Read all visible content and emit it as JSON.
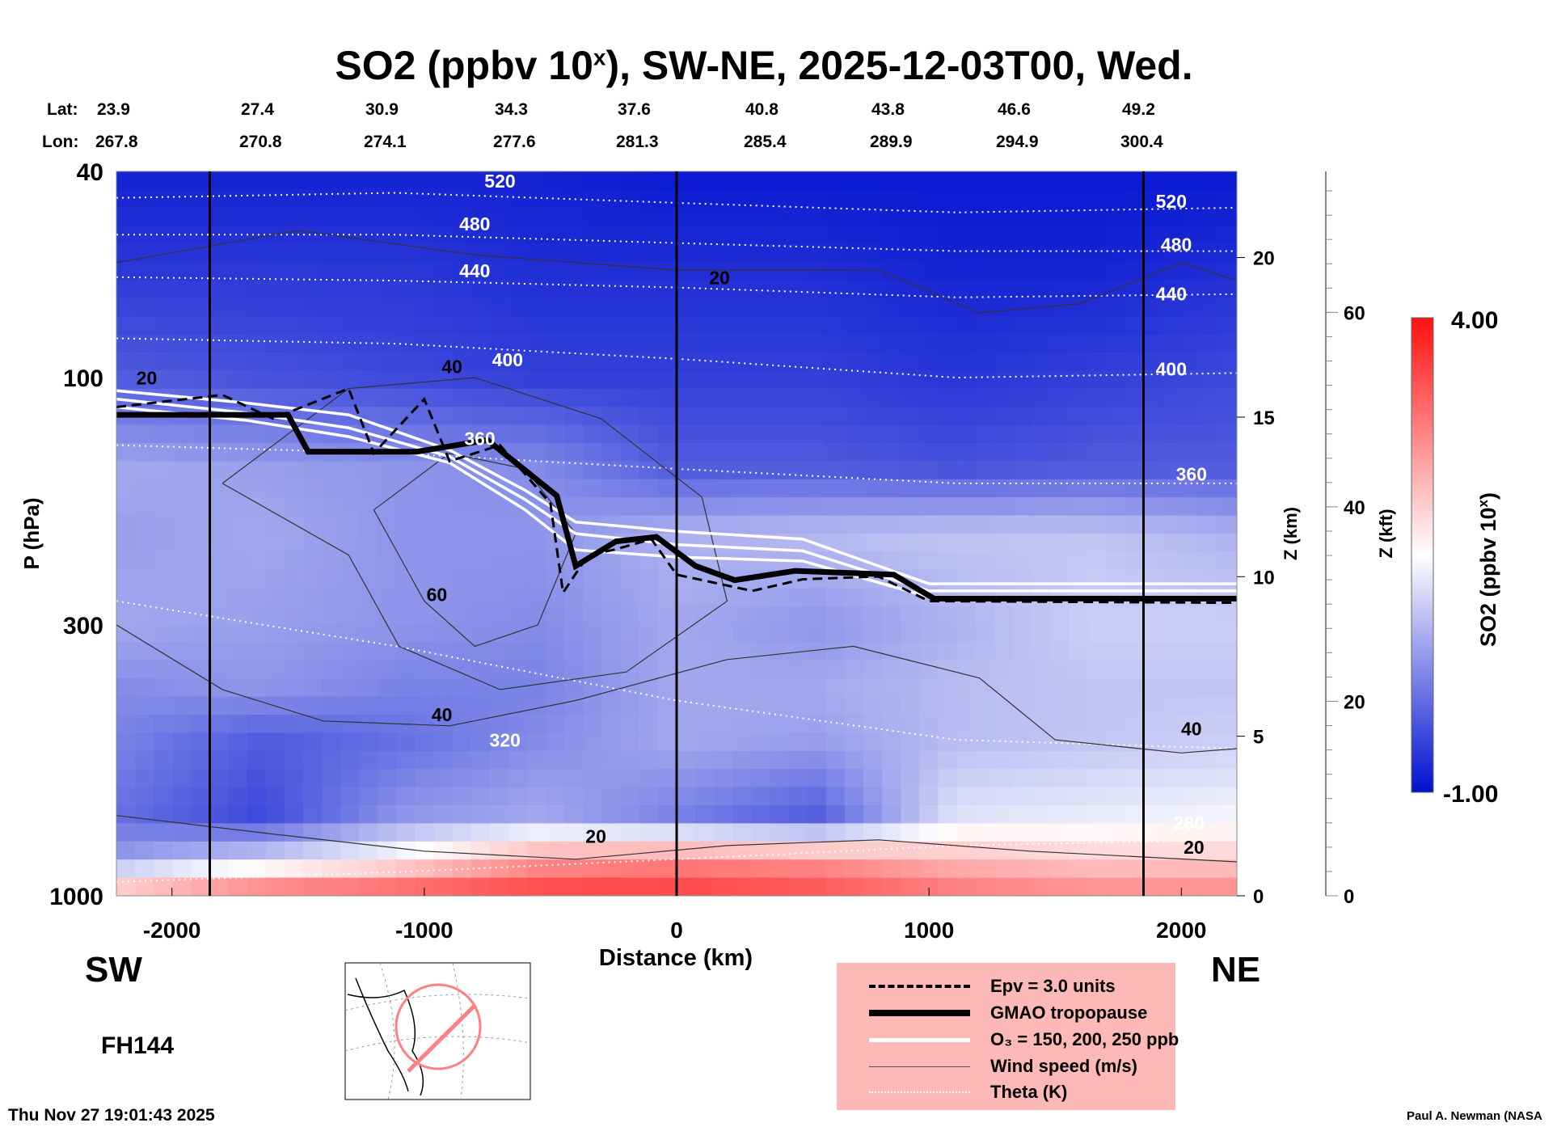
{
  "title": {
    "main": "SO2 (ppbv 10",
    "sup": "x",
    "rest": "), SW-NE, 2025-12-03T00, Wed."
  },
  "lat_label": "Lat:",
  "lon_label": "Lon:",
  "lats": [
    "23.9",
    "27.4",
    "30.9",
    "34.3",
    "37.6",
    "40.8",
    "43.8",
    "46.6",
    "49.2"
  ],
  "lons": [
    "267.8",
    "270.8",
    "274.1",
    "277.6",
    "281.3",
    "285.4",
    "289.9",
    "294.9",
    "300.4"
  ],
  "sw_label": "SW",
  "ne_label": "NE",
  "forecast_hour": "FH144",
  "timestamp": "Thu Nov 27 19:01:43 2025",
  "credit": "Paul A. Newman (NASA",
  "legend": {
    "epv": "Epv = 3.0 units",
    "tropopause": "GMAO tropopause",
    "o3": "O₃ = 150, 200, 250 ppb",
    "wind": "Wind speed (m/s)",
    "theta": "Theta (K)"
  },
  "colors": {
    "legend_bg": "#fdb8b8",
    "low": "#0010d0",
    "mid": "#ffffff",
    "high": "#ff1010"
  },
  "chart_data": {
    "type": "heatmap",
    "title": "SO2 (ppbv 10^x), SW-NE, 2025-12-03T00, Wed.",
    "xlabel": "Distance (km)",
    "ylabel": "P (hPa)",
    "y2label": "Z (km)",
    "y3label": "Z (kft)",
    "xlim": [
      -2220,
      2220
    ],
    "ylim": [
      1000,
      40
    ],
    "x_ticks": [
      "-2000",
      "-1000",
      "0",
      "1000",
      "2000"
    ],
    "x_tick_values": [
      -2000,
      -1000,
      0,
      1000,
      2000
    ],
    "y_ticks": [
      "40",
      "100",
      "300",
      "1000"
    ],
    "y_tick_values": [
      40,
      100,
      300,
      1000
    ],
    "zkm_ticks": [
      "0",
      "5",
      "10",
      "15",
      "20"
    ],
    "zkm_tick_values": [
      0,
      5,
      10,
      15,
      20
    ],
    "zkft_ticks": [
      "0",
      "20",
      "40",
      "60"
    ],
    "zkft_tick_values": [
      0,
      20,
      40,
      60
    ],
    "section_lines_km": [
      -1850,
      0,
      1850
    ],
    "colorbar": {
      "label": "SO2 (ppbv 10",
      "label_sup": "x",
      "label_end": ")",
      "min_label": "-1.00",
      "max_label": "4.00",
      "range": [
        -1,
        4
      ]
    },
    "grid_x": [
      -2200,
      -1650,
      -1100,
      -550,
      0,
      550,
      1100,
      1650,
      2200
    ],
    "grid_p": [
      40,
      60,
      100,
      150,
      200,
      300,
      400,
      500,
      700,
      850,
      1000
    ],
    "values": [
      [
        -0.8,
        -0.8,
        -0.8,
        -0.8,
        -0.9,
        -0.9,
        -0.9,
        -0.9,
        -0.9
      ],
      [
        -0.6,
        -0.6,
        -0.6,
        -0.7,
        -0.7,
        -0.7,
        -0.8,
        -0.8,
        -0.7
      ],
      [
        -0.2,
        -0.3,
        -0.4,
        -0.5,
        -0.5,
        -0.5,
        -0.6,
        -0.5,
        -0.4
      ],
      [
        0.6,
        0.5,
        0.4,
        0.3,
        -0.2,
        -0.2,
        -0.3,
        -0.2,
        -0.2
      ],
      [
        0.5,
        0.6,
        0.4,
        0.4,
        0.7,
        0.8,
        0.9,
        0.9,
        0.7
      ],
      [
        0.6,
        0.5,
        0.4,
        0.3,
        0.6,
        0.4,
        0.7,
        1.0,
        1.0
      ],
      [
        0.3,
        0.4,
        0.2,
        0.2,
        0.6,
        0.6,
        0.8,
        0.9,
        0.9
      ],
      [
        0.2,
        -0.2,
        0.0,
        0.3,
        0.6,
        0.5,
        0.8,
        0.9,
        1.0
      ],
      [
        0.0,
        -0.4,
        0.4,
        0.6,
        0.2,
        -0.2,
        1.2,
        1.3,
        1.4
      ],
      [
        0.5,
        1.0,
        1.6,
        2.5,
        2.7,
        2.6,
        2.2,
        2.0,
        2.0
      ],
      [
        2.5,
        3.2,
        3.4,
        3.6,
        3.6,
        3.4,
        3.0,
        2.8,
        2.8
      ]
    ],
    "tropopause": [
      [
        -2220,
        118
      ],
      [
        -1540,
        118
      ],
      [
        -1460,
        139
      ],
      [
        -1030,
        139
      ],
      [
        -750,
        132
      ],
      [
        -475,
        169
      ],
      [
        -400,
        231
      ],
      [
        -240,
        207
      ],
      [
        -80,
        203
      ],
      [
        75,
        231
      ],
      [
        230,
        246
      ],
      [
        470,
        236
      ],
      [
        860,
        240
      ],
      [
        1020,
        267
      ],
      [
        2220,
        267
      ]
    ],
    "o3_lines": [
      [
        [
          -2220,
          106
        ],
        [
          -1700,
          112
        ],
        [
          -1300,
          118
        ],
        [
          -900,
          138
        ],
        [
          -600,
          165
        ],
        [
          -400,
          190
        ],
        [
          0,
          198
        ],
        [
          500,
          205
        ],
        [
          1000,
          250
        ],
        [
          2220,
          250
        ]
      ],
      [
        [
          -2220,
          110
        ],
        [
          -1700,
          117
        ],
        [
          -1300,
          125
        ],
        [
          -900,
          142
        ],
        [
          -600,
          172
        ],
        [
          -400,
          200
        ],
        [
          0,
          210
        ],
        [
          500,
          216
        ],
        [
          1000,
          258
        ],
        [
          2220,
          258
        ]
      ],
      [
        [
          -2220,
          114
        ],
        [
          -1700,
          121
        ],
        [
          -1300,
          130
        ],
        [
          -900,
          146
        ],
        [
          -600,
          180
        ],
        [
          -400,
          215
        ],
        [
          0,
          222
        ],
        [
          500,
          226
        ],
        [
          1000,
          265
        ],
        [
          2220,
          265
        ]
      ]
    ],
    "epv_line": [
      [
        -2220,
        114
      ],
      [
        -1800,
        108
      ],
      [
        -1600,
        120
      ],
      [
        -1300,
        105
      ],
      [
        -1200,
        140
      ],
      [
        -1000,
        110
      ],
      [
        -900,
        145
      ],
      [
        -700,
        135
      ],
      [
        -500,
        175
      ],
      [
        -450,
        260
      ],
      [
        -350,
        220
      ],
      [
        -250,
        215
      ],
      [
        -100,
        205
      ],
      [
        0,
        240
      ],
      [
        300,
        258
      ],
      [
        500,
        245
      ],
      [
        800,
        242
      ],
      [
        1000,
        270
      ],
      [
        2220,
        272
      ]
    ],
    "theta_lines": [
      {
        "value": "520",
        "p": [
          45,
          44,
          46,
          48,
          47
        ]
      },
      {
        "value": "480",
        "p": [
          53,
          53,
          55,
          57,
          57
        ]
      },
      {
        "value": "440",
        "p": [
          64,
          65,
          67,
          70,
          69
        ]
      },
      {
        "value": "400",
        "p": [
          84,
          86,
          92,
          100,
          98
        ]
      },
      {
        "value": "360",
        "p": [
          135,
          140,
          150,
          160,
          160
        ]
      },
      {
        "value": "320",
        "p": [
          270,
          330,
          420,
          500,
          520
        ]
      },
      {
        "value": "280",
        "p": [
          940,
          900,
          850,
          800,
          780
        ]
      }
    ],
    "wind_contours": [
      {
        "label": "20",
        "pts": [
          [
            -2220,
            60
          ],
          [
            -1500,
            52
          ],
          [
            -800,
            58
          ],
          [
            0,
            62
          ],
          [
            800,
            62
          ],
          [
            1200,
            75
          ],
          [
            1600,
            72
          ],
          [
            2000,
            60
          ],
          [
            2220,
            65
          ]
        ]
      },
      {
        "label": "40",
        "pts": [
          [
            -1800,
            160
          ],
          [
            -1300,
            105
          ],
          [
            -800,
            100
          ],
          [
            -300,
            120
          ],
          [
            100,
            170
          ],
          [
            200,
            270
          ],
          [
            -200,
            370
          ],
          [
            -700,
            400
          ],
          [
            -1100,
            330
          ],
          [
            -1300,
            220
          ],
          [
            -1800,
            160
          ]
        ]
      },
      {
        "label": "60",
        "pts": [
          [
            -1200,
            180
          ],
          [
            -900,
            140
          ],
          [
            -600,
            150
          ],
          [
            -400,
            200
          ],
          [
            -550,
            300
          ],
          [
            -800,
            330
          ],
          [
            -1000,
            270
          ],
          [
            -1200,
            180
          ]
        ]
      },
      {
        "label": "40",
        "pts": [
          [
            -2220,
            300
          ],
          [
            -1800,
            400
          ],
          [
            -1400,
            460
          ],
          [
            -900,
            470
          ],
          [
            -400,
            420
          ],
          [
            200,
            350
          ],
          [
            700,
            330
          ],
          [
            1200,
            380
          ],
          [
            1500,
            500
          ],
          [
            2000,
            530
          ],
          [
            2220,
            520
          ]
        ]
      },
      {
        "label": "20",
        "pts": [
          [
            -2220,
            700
          ],
          [
            -1600,
            760
          ],
          [
            -1000,
            820
          ],
          [
            -400,
            850
          ],
          [
            200,
            800
          ],
          [
            800,
            780
          ],
          [
            1400,
            820
          ],
          [
            2220,
            860
          ]
        ]
      }
    ],
    "contour_labels": [
      {
        "text": "20",
        "x": -2100,
        "p": 103
      },
      {
        "text": "20",
        "x": 170,
        "p": 66
      },
      {
        "text": "40",
        "x": -890,
        "p": 98
      },
      {
        "text": "60",
        "x": -950,
        "p": 270
      },
      {
        "text": "40",
        "x": -930,
        "p": 460
      },
      {
        "text": "40",
        "x": 2040,
        "p": 490
      },
      {
        "text": "20",
        "x": -320,
        "p": 790
      },
      {
        "text": "20",
        "x": 2050,
        "p": 830
      },
      {
        "text": "520",
        "x": -700,
        "p": 43
      },
      {
        "text": "480",
        "x": -800,
        "p": 52
      },
      {
        "text": "440",
        "x": -800,
        "p": 64
      },
      {
        "text": "400",
        "x": -670,
        "p": 95
      },
      {
        "text": "360",
        "x": -780,
        "p": 135
      },
      {
        "text": "320",
        "x": -680,
        "p": 515
      },
      {
        "text": "520",
        "x": 1960,
        "p": 47
      },
      {
        "text": "480",
        "x": 1980,
        "p": 57
      },
      {
        "text": "440",
        "x": 1960,
        "p": 71
      },
      {
        "text": "400",
        "x": 1960,
        "p": 99
      },
      {
        "text": "360",
        "x": 2040,
        "p": 158
      },
      {
        "text": "280",
        "x": 2030,
        "p": 790
      }
    ]
  }
}
